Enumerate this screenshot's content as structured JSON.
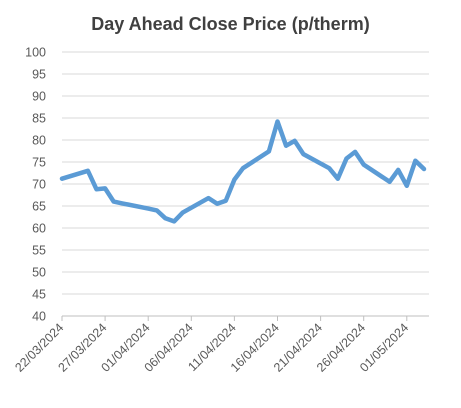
{
  "chart_data": {
    "type": "line",
    "title": "Day Ahead Close Price (p/therm)",
    "xlabel": "",
    "ylabel": "",
    "ylim": [
      40,
      100
    ],
    "y_ticks": [
      "100",
      "95",
      "90",
      "85",
      "80",
      "75",
      "70",
      "65",
      "60",
      "55",
      "50",
      "45",
      "40"
    ],
    "x_tick_labels": [
      "22/03/2024",
      "27/03/2024",
      "01/04/2024",
      "06/04/2024",
      "11/04/2024",
      "16/04/2024",
      "21/04/2024",
      "26/04/2024",
      "01/05/2024"
    ],
    "grid": true,
    "legend": "none",
    "line_color": "#5b9bd5",
    "series": [
      {
        "x": [
          "22/03/2024",
          "25/03/2024",
          "26/03/2024",
          "27/03/2024",
          "28/03/2024",
          "29/03/2024",
          "01/04/2024",
          "02/04/2024",
          "03/04/2024",
          "04/04/2024",
          "05/04/2024",
          "08/04/2024",
          "09/04/2024",
          "10/04/2024",
          "11/04/2024",
          "12/04/2024",
          "15/04/2024",
          "16/04/2024",
          "17/04/2024",
          "18/04/2024",
          "19/04/2024",
          "22/04/2024",
          "23/04/2024",
          "24/04/2024",
          "25/04/2024",
          "26/04/2024",
          "29/04/2024",
          "30/04/2024",
          "01/05/2024",
          "02/05/2024",
          "03/05/2024"
        ],
        "values": [
          71.2,
          73.0,
          68.8,
          69.0,
          66.0,
          65.6,
          64.4,
          64.0,
          62.2,
          61.5,
          63.5,
          66.8,
          65.5,
          66.2,
          71.0,
          73.6,
          77.4,
          84.2,
          78.7,
          79.8,
          76.8,
          73.6,
          71.2,
          75.8,
          77.3,
          74.4,
          70.5,
          73.2,
          69.6,
          75.3,
          73.4
        ]
      }
    ]
  }
}
